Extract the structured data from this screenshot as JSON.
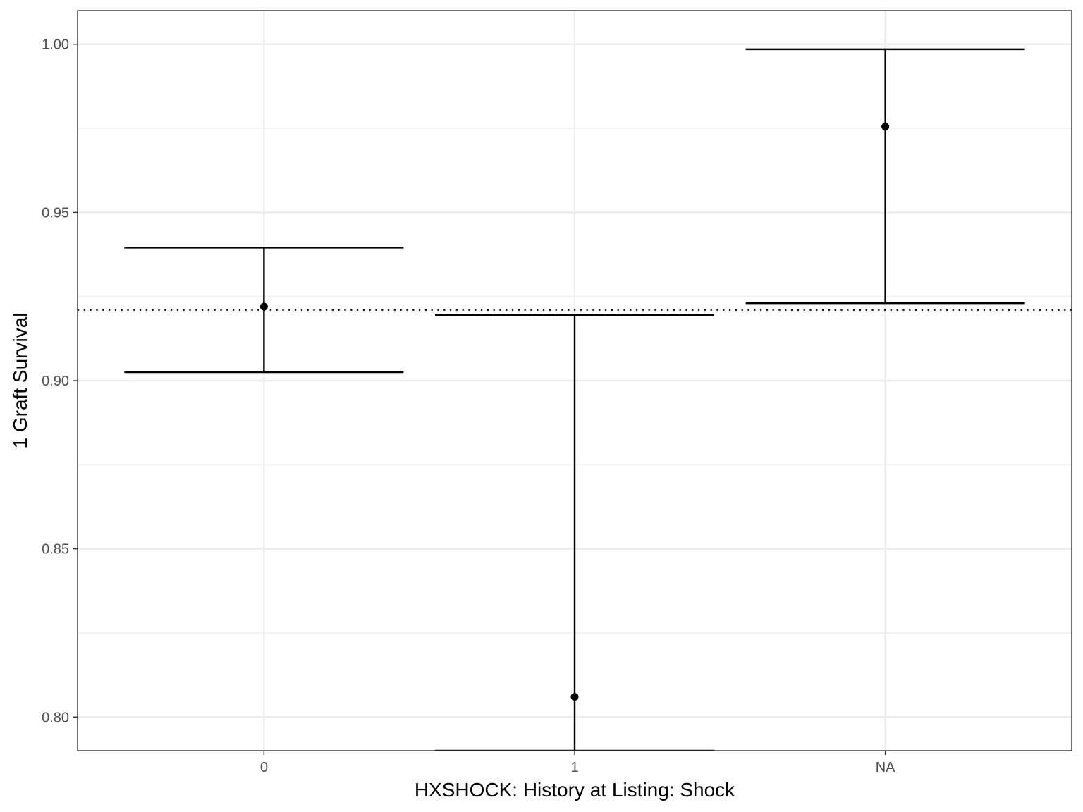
{
  "chart_data": {
    "type": "errorbar",
    "xlabel": "HXSHOCK: History at Listing: Shock",
    "ylabel": "1 Graft Survival",
    "categories": [
      "0",
      "1",
      "NA"
    ],
    "points": [
      {
        "category": "0",
        "estimate": 0.922,
        "lower": 0.9025,
        "upper": 0.9395
      },
      {
        "category": "1",
        "estimate": 0.806,
        "lower": 0.79,
        "upper": 0.9195
      },
      {
        "category": "NA",
        "estimate": 0.9755,
        "lower": 0.923,
        "upper": 0.9985
      }
    ],
    "reference_line": {
      "value": 0.921,
      "style": "dotted"
    },
    "ylim": [
      0.79,
      1.01
    ],
    "y_ticks": [
      0.8,
      0.85,
      0.9,
      0.95,
      1.0
    ],
    "y_tick_labels": [
      "0.80",
      "0.85",
      "0.90",
      "0.95",
      "1.00"
    ],
    "y_minor_ticks": [
      0.825,
      0.875,
      0.925,
      0.975
    ],
    "grid": true,
    "theme": "bw",
    "colors": {
      "panel_border": "#333333",
      "grid": "#ebebeb",
      "marks": "#000000",
      "tick_text": "#4d4d4d"
    }
  }
}
